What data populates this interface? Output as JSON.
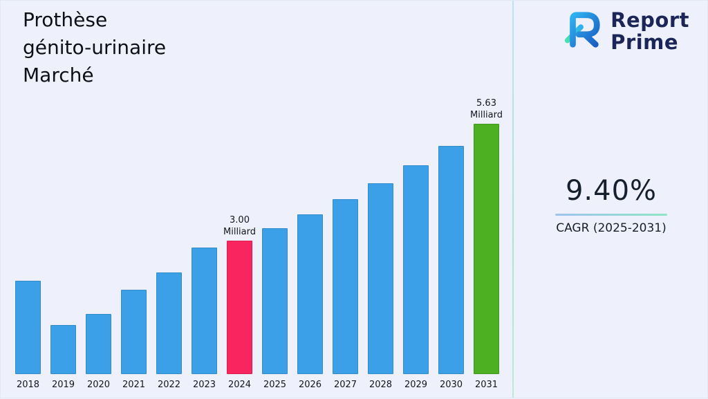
{
  "title": {
    "lines": [
      "Prothèse",
      "génito-urinaire",
      "Marché"
    ],
    "text": "Prothèse génito-urinaire Marché"
  },
  "logo": {
    "line1": "Report",
    "line2": "Prime"
  },
  "cagr": {
    "value": "9.40%",
    "caption": "CAGR (2025-2031)"
  },
  "colors": {
    "background": "#eef1fb",
    "bar_blue": "#3ca0e8",
    "bar_pink": "#f8255f",
    "bar_green": "#4cb022",
    "divider_teal": "#a9e6cf",
    "logo_navy": "#1b2558",
    "logo_blue": "#2196e8",
    "logo_teal": "#35dcaa",
    "accent_line_start": "#9fc2f0",
    "accent_line_end": "#8fe6c4"
  },
  "chart_data": {
    "type": "bar",
    "title": "Prothèse génito-urinaire Marché",
    "xlabel": "",
    "ylabel": "",
    "unit": "Milliard",
    "categories": [
      "2018",
      "2019",
      "2020",
      "2021",
      "2022",
      "2023",
      "2024",
      "2025",
      "2026",
      "2027",
      "2028",
      "2029",
      "2030",
      "2031"
    ],
    "values": [
      2.1,
      1.11,
      1.36,
      1.89,
      2.28,
      2.84,
      3.0,
      3.28,
      3.59,
      3.93,
      4.3,
      4.7,
      5.14,
      5.63
    ],
    "ylim": [
      0,
      6
    ],
    "grid": false,
    "legend": false,
    "bar_color": "#3ca0e8",
    "highlights": {
      "2024": "#f8255f",
      "2031": "#4cb022"
    },
    "annotations": [
      {
        "category": "2024",
        "value_label": "3.00",
        "unit_label": "Milliard"
      },
      {
        "category": "2031",
        "value_label": "5.63",
        "unit_label": "Milliard"
      }
    ]
  }
}
